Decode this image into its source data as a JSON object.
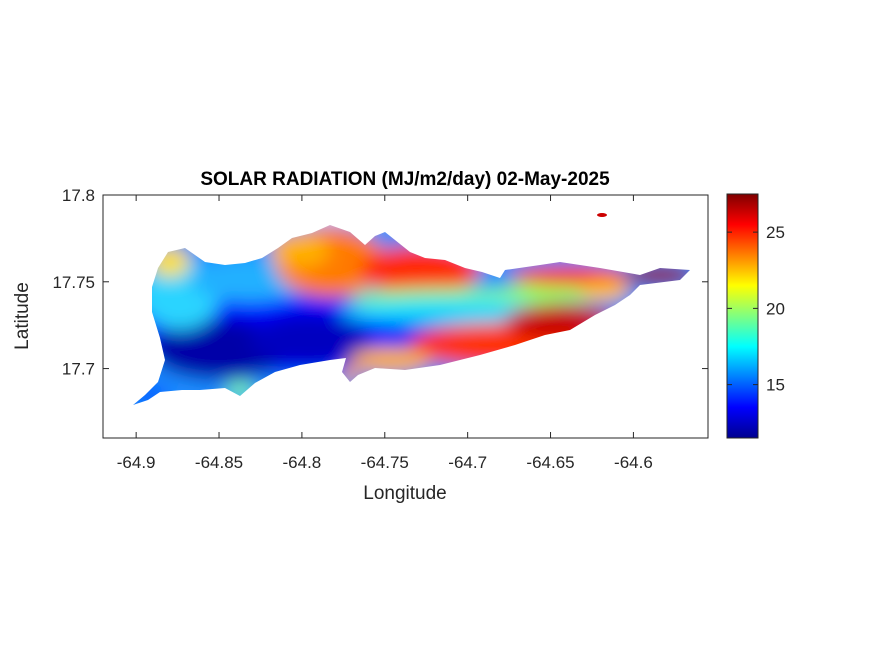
{
  "title": "SOLAR RADIATION (MJ/m2/day) 02-May-2025",
  "chart_data": {
    "type": "heatmap",
    "title": "SOLAR RADIATION (MJ/m2/day) 02-May-2025",
    "xlabel": "Longitude",
    "ylabel": "Latitude",
    "xlim": [
      -64.92,
      -64.555
    ],
    "ylim": [
      17.66,
      17.8
    ],
    "x_ticks": [
      -64.9,
      -64.85,
      -64.8,
      -64.75,
      -64.7,
      -64.65,
      -64.6
    ],
    "x_tick_labels": [
      "-64.9",
      "-64.85",
      "-64.8",
      "-64.75",
      "-64.7",
      "-64.65",
      "-64.6"
    ],
    "y_ticks": [
      17.7,
      17.75,
      17.8
    ],
    "y_tick_labels": [
      "17.7",
      "17.75",
      "17.8"
    ],
    "colorbar": {
      "colormap": "jet",
      "range": [
        11.5,
        27.5
      ],
      "ticks": [
        15,
        20,
        25
      ],
      "tick_labels": [
        "15",
        "20",
        "25"
      ]
    },
    "grid": false,
    "field_description_points": [
      {
        "lon": -64.85,
        "lat": 17.712,
        "value": 12
      },
      {
        "lon": -64.8,
        "lat": 17.715,
        "value": 13
      },
      {
        "lon": -64.86,
        "lat": 17.745,
        "value": 17
      },
      {
        "lon": -64.78,
        "lat": 17.76,
        "value": 24
      },
      {
        "lon": -64.74,
        "lat": 17.758,
        "value": 26
      },
      {
        "lon": -64.7,
        "lat": 17.733,
        "value": 18
      },
      {
        "lon": -64.65,
        "lat": 17.74,
        "value": 20
      },
      {
        "lon": -64.65,
        "lat": 17.722,
        "value": 26
      },
      {
        "lon": -64.6,
        "lat": 17.752,
        "value": 27
      }
    ]
  }
}
